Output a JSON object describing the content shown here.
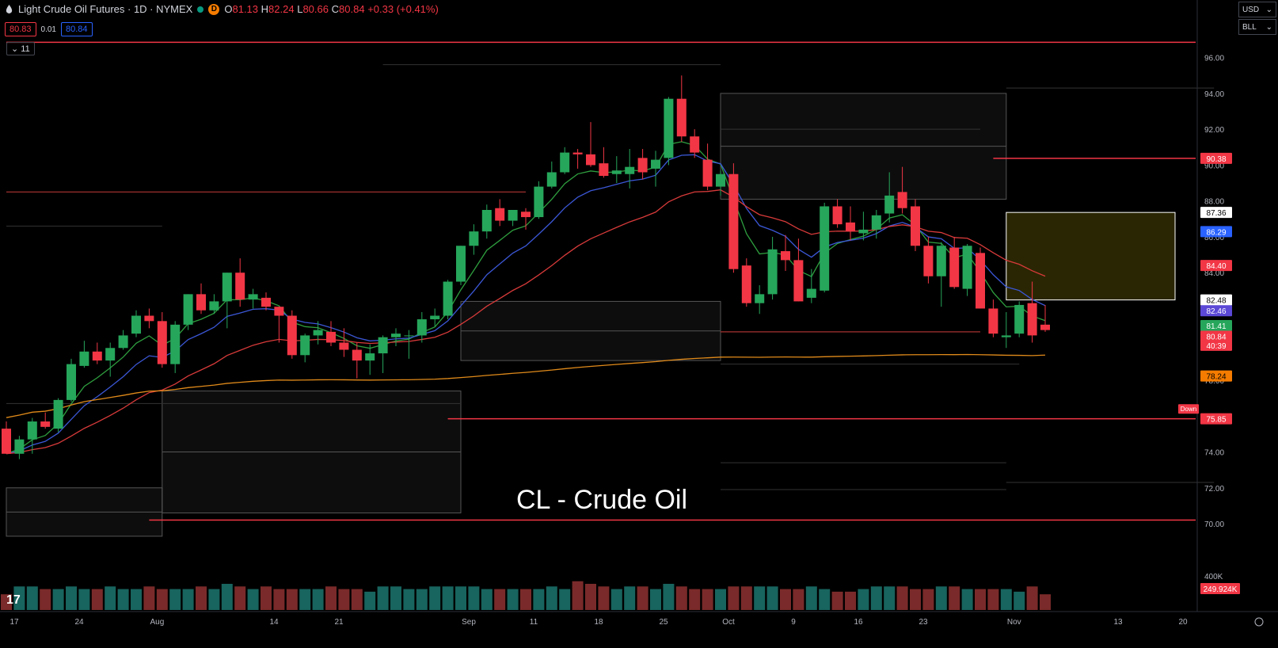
{
  "header": {
    "title": "Light Crude Oil Futures · 1D · NYMEX",
    "live_badge": "D",
    "open_label": "O",
    "open": "81.13",
    "high_label": "H",
    "high": "82.24",
    "low_label": "L",
    "low": "80.66",
    "close_label": "C",
    "close": "80.84",
    "change": "+0.33 (+0.41%)"
  },
  "quote": {
    "sell": "80.83",
    "spread": "0.01",
    "buy": "80.84"
  },
  "indicators_toggle": "11",
  "right_controls": {
    "currency": "USD",
    "unit": "BLL"
  },
  "overlay_text": "CL - Crude Oil",
  "colors": {
    "up": "#26a65b",
    "down": "#f23645",
    "ema_short": "#2e9e3e",
    "ema_mid": "#3b57d6",
    "ema_red": "#d83a3a",
    "sma_long": "#e08a1a",
    "bg": "#000000"
  },
  "chart_data": {
    "type": "candlestick",
    "ylim": [
      68.5,
      97.0
    ],
    "y_ticks": [
      "70.00",
      "72.00",
      "74.00",
      "76.00",
      "78.00",
      "80.00",
      "82.00",
      "84.00",
      "86.00",
      "88.00",
      "90.00",
      "92.00",
      "94.00",
      "96.00"
    ],
    "x_labels": [
      {
        "label": "17",
        "index": 0
      },
      {
        "label": "24",
        "index": 5
      },
      {
        "label": "Aug",
        "index": 11
      },
      {
        "label": "14",
        "index": 20
      },
      {
        "label": "21",
        "index": 25
      },
      {
        "label": "Sep",
        "index": 35
      },
      {
        "label": "11",
        "index": 40
      },
      {
        "label": "18",
        "index": 45
      },
      {
        "label": "25",
        "index": 50
      },
      {
        "label": "Oct",
        "index": 55
      },
      {
        "label": "9",
        "index": 60
      },
      {
        "label": "16",
        "index": 65
      },
      {
        "label": "23",
        "index": 70
      },
      {
        "label": "Nov",
        "index": 77
      },
      {
        "label": "13",
        "index": 85
      },
      {
        "label": "20",
        "index": 90
      }
    ],
    "candles": [
      [
        75.3,
        75.7,
        73.9,
        73.9
      ],
      [
        73.9,
        74.9,
        73.6,
        74.7
      ],
      [
        74.7,
        75.9,
        73.9,
        75.7
      ],
      [
        75.7,
        76.2,
        75.3,
        75.4
      ],
      [
        75.3,
        77.0,
        75.1,
        76.9
      ],
      [
        76.9,
        79.2,
        76.8,
        78.9
      ],
      [
        78.8,
        80.2,
        78.7,
        79.6
      ],
      [
        79.6,
        80.1,
        78.9,
        79.1
      ],
      [
        79.1,
        80.1,
        78.2,
        79.8
      ],
      [
        79.8,
        80.8,
        79.7,
        80.5
      ],
      [
        80.6,
        81.9,
        80.4,
        81.6
      ],
      [
        81.6,
        82.0,
        80.9,
        81.3
      ],
      [
        81.3,
        81.8,
        78.7,
        78.9
      ],
      [
        78.9,
        81.3,
        78.4,
        81.1
      ],
      [
        81.1,
        82.8,
        80.8,
        82.8
      ],
      [
        82.8,
        83.4,
        81.7,
        81.9
      ],
      [
        81.9,
        82.8,
        81.7,
        82.4
      ],
      [
        82.4,
        84.0,
        80.9,
        84.0
      ],
      [
        84.0,
        84.8,
        82.1,
        82.5
      ],
      [
        82.5,
        83.1,
        82.0,
        82.8
      ],
      [
        82.6,
        82.9,
        81.9,
        82.1
      ],
      [
        82.1,
        82.1,
        80.1,
        81.6
      ],
      [
        81.6,
        81.9,
        79.2,
        79.4
      ],
      [
        79.4,
        80.6,
        79.0,
        80.5
      ],
      [
        80.5,
        81.3,
        80.0,
        80.8
      ],
      [
        80.7,
        81.3,
        79.9,
        80.1
      ],
      [
        80.1,
        80.9,
        79.3,
        79.7
      ],
      [
        79.7,
        80.1,
        78.1,
        79.1
      ],
      [
        79.1,
        80.0,
        78.3,
        79.5
      ],
      [
        79.5,
        80.5,
        78.4,
        80.4
      ],
      [
        80.4,
        80.9,
        79.9,
        80.6
      ],
      [
        80.5,
        80.8,
        79.2,
        80.5
      ],
      [
        80.5,
        81.8,
        80.1,
        81.4
      ],
      [
        81.4,
        82.0,
        81.0,
        81.6
      ],
      [
        81.6,
        83.6,
        81.4,
        83.5
      ],
      [
        83.5,
        85.5,
        83.3,
        85.5
      ],
      [
        85.5,
        86.7,
        85.0,
        86.3
      ],
      [
        86.3,
        87.8,
        85.9,
        87.5
      ],
      [
        87.6,
        88.1,
        86.6,
        86.9
      ],
      [
        86.9,
        87.5,
        86.6,
        87.5
      ],
      [
        87.4,
        87.6,
        86.4,
        87.1
      ],
      [
        87.1,
        89.1,
        87.0,
        88.8
      ],
      [
        88.8,
        90.2,
        88.7,
        89.6
      ],
      [
        89.6,
        91.0,
        89.5,
        90.7
      ],
      [
        90.7,
        90.9,
        89.8,
        90.6
      ],
      [
        90.6,
        92.4,
        89.9,
        90.0
      ],
      [
        90.1,
        91.0,
        89.3,
        89.4
      ],
      [
        89.5,
        90.5,
        89.0,
        89.7
      ],
      [
        89.5,
        90.9,
        88.7,
        89.9
      ],
      [
        90.4,
        90.9,
        89.2,
        89.6
      ],
      [
        89.8,
        90.8,
        88.8,
        90.3
      ],
      [
        90.4,
        93.8,
        90.0,
        93.7
      ],
      [
        93.7,
        95.0,
        91.3,
        91.6
      ],
      [
        91.6,
        92.0,
        90.4,
        90.7
      ],
      [
        90.3,
        91.2,
        88.6,
        88.8
      ],
      [
        88.8,
        89.7,
        88.3,
        89.5
      ],
      [
        89.5,
        90.1,
        84.0,
        84.2
      ],
      [
        84.4,
        84.8,
        82.1,
        82.3
      ],
      [
        82.3,
        83.3,
        81.7,
        82.8
      ],
      [
        82.8,
        86.0,
        82.5,
        85.3
      ],
      [
        85.2,
        86.1,
        84.1,
        84.7
      ],
      [
        84.7,
        85.9,
        82.4,
        82.4
      ],
      [
        82.6,
        84.2,
        82.3,
        83.1
      ],
      [
        83.0,
        87.9,
        82.9,
        87.7
      ],
      [
        87.7,
        88.1,
        86.5,
        86.7
      ],
      [
        86.8,
        87.7,
        85.8,
        86.3
      ],
      [
        86.2,
        87.4,
        85.8,
        86.4
      ],
      [
        86.4,
        87.5,
        85.9,
        87.2
      ],
      [
        87.3,
        89.6,
        86.8,
        88.3
      ],
      [
        88.5,
        89.9,
        87.3,
        87.6
      ],
      [
        87.7,
        88.1,
        85.2,
        85.5
      ],
      [
        85.5,
        86.0,
        83.4,
        83.8
      ],
      [
        83.8,
        85.7,
        82.1,
        85.5
      ],
      [
        85.4,
        86.0,
        83.1,
        83.2
      ],
      [
        83.1,
        85.6,
        82.7,
        85.5
      ],
      [
        85.1,
        85.4,
        82.0,
        82.0
      ],
      [
        82.0,
        82.5,
        80.4,
        80.6
      ],
      [
        80.4,
        81.8,
        79.8,
        80.5
      ],
      [
        80.6,
        82.4,
        80.4,
        82.2
      ],
      [
        82.3,
        83.5,
        80.1,
        80.5
      ],
      [
        81.1,
        82.2,
        80.7,
        80.8
      ]
    ],
    "volume": [
      0.6,
      0.9,
      0.9,
      0.8,
      0.8,
      0.9,
      0.8,
      0.8,
      0.9,
      0.8,
      0.8,
      0.9,
      0.8,
      0.8,
      0.8,
      0.9,
      0.8,
      1.0,
      0.9,
      0.8,
      0.9,
      0.8,
      0.8,
      0.8,
      0.8,
      0.9,
      0.8,
      0.8,
      0.7,
      0.9,
      0.9,
      0.8,
      0.8,
      0.9,
      0.9,
      0.9,
      0.9,
      0.8,
      0.8,
      0.8,
      0.8,
      0.8,
      0.9,
      0.8,
      1.1,
      1.0,
      0.9,
      0.8,
      0.9,
      0.9,
      0.8,
      1.0,
      0.9,
      0.8,
      0.8,
      0.8,
      0.9,
      0.9,
      0.9,
      0.9,
      0.8,
      0.8,
      0.9,
      0.8,
      0.7,
      0.7,
      0.8,
      0.9,
      0.9,
      0.9,
      0.8,
      0.8,
      0.9,
      0.9,
      0.8,
      0.8,
      0.8,
      0.8,
      0.7,
      0.9,
      0.6
    ],
    "volume_label": "400K",
    "horizontal_lines": [
      {
        "price": 96.85,
        "color": "#f23645",
        "from": 0
      },
      {
        "price": 90.38,
        "color": "#f23645",
        "from": 76
      },
      {
        "price": 75.85,
        "color": "#f23645",
        "from": 34
      },
      {
        "price": 70.2,
        "color": "#f23645",
        "from": 11
      },
      {
        "price": 88.5,
        "color": "#8b2a2a",
        "from": 0,
        "to": 40
      },
      {
        "price": 80.7,
        "color": "#8b2a2a",
        "from": 55,
        "to": 75
      }
    ],
    "boxes": [
      {
        "from": 0,
        "to": 12,
        "top": 72.0,
        "bottom": 69.3
      },
      {
        "from": 12,
        "to": 35,
        "top": 77.4,
        "bottom": 70.6
      },
      {
        "from": 35,
        "to": 55,
        "top": 82.4,
        "bottom": 79.1
      },
      {
        "from": 55,
        "to": 77,
        "top": 94.0,
        "bottom": 88.1
      }
    ],
    "zone_box": {
      "from": 77,
      "to": 90,
      "top": 87.36,
      "bottom": 82.48
    },
    "price_labels": [
      {
        "text": "90.38",
        "price": 90.38,
        "bg": "#f23645",
        "fg": "#ffffff"
      },
      {
        "text": "87.36",
        "price": 87.36,
        "bg": "#ffffff",
        "fg": "#000000"
      },
      {
        "text": "86.29",
        "price": 86.29,
        "bg": "#2962ff",
        "fg": "#ffffff"
      },
      {
        "text": "84.40",
        "price": 84.4,
        "bg": "#f23645",
        "fg": "#ffffff"
      },
      {
        "text": "82.48",
        "price": 82.48,
        "bg": "#ffffff",
        "fg": "#000000"
      },
      {
        "text": "82.46",
        "price": 81.88,
        "bg": "#5b48d6",
        "fg": "#ffffff"
      },
      {
        "text": "81.41",
        "price": 81.05,
        "bg": "#26a65b",
        "fg": "#ffffff"
      },
      {
        "text": "80.84",
        "price": 80.45,
        "bg": "#f23645",
        "fg": "#ffffff"
      },
      {
        "text": "40:39",
        "price": 79.95,
        "bg": "#f23645",
        "fg": "#ffffff"
      },
      {
        "text": "78.24",
        "price": 78.24,
        "bg": "#f57c00",
        "fg": "#000000"
      },
      {
        "text": "75.85",
        "price": 75.85,
        "bg": "#f23645",
        "fg": "#ffffff"
      }
    ],
    "volume_value_label": "249.924K",
    "down_tag": "Down"
  }
}
